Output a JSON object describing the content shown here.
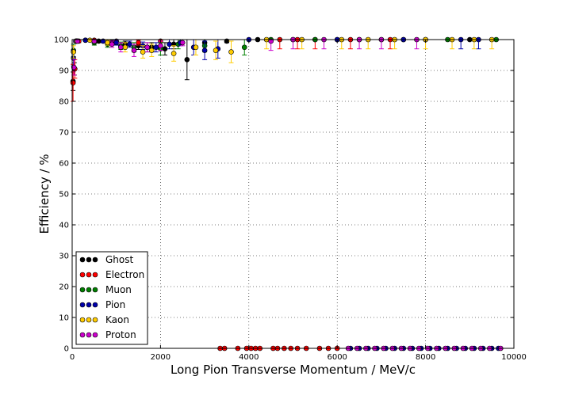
{
  "chart_data": {
    "type": "scatter",
    "title": "",
    "xlabel": "Long Pion Transverse Momentum / MeV/c",
    "ylabel": "Efficiency / %",
    "xlim": [
      0,
      10000
    ],
    "ylim": [
      0,
      100
    ],
    "x_ticks": [
      0,
      2000,
      4000,
      6000,
      8000,
      10000
    ],
    "y_ticks": [
      0,
      10,
      20,
      30,
      40,
      50,
      60,
      70,
      80,
      90,
      100
    ],
    "grid": true,
    "legend_position": "lower-left",
    "series": [
      {
        "name": "Ghost",
        "color": "#000000",
        "points": [
          {
            "x": 20,
            "y": 86.5,
            "err": 3.0
          },
          {
            "x": 50,
            "y": 90.5,
            "err": 2.0
          },
          {
            "x": 100,
            "y": 99.5,
            "err": 0.5
          },
          {
            "x": 300,
            "y": 99.8,
            "err": 0.3
          },
          {
            "x": 600,
            "y": 99.5,
            "err": 0.5
          },
          {
            "x": 900,
            "y": 99.0,
            "err": 0.8
          },
          {
            "x": 1200,
            "y": 98.5,
            "err": 1.0
          },
          {
            "x": 1500,
            "y": 98.0,
            "err": 1.2
          },
          {
            "x": 1800,
            "y": 97.5,
            "err": 1.5
          },
          {
            "x": 2100,
            "y": 97.0,
            "err": 2.0
          },
          {
            "x": 2300,
            "y": 98.5,
            "err": 1.5
          },
          {
            "x": 2600,
            "y": 93.5,
            "err": 6.5
          },
          {
            "x": 3000,
            "y": 99.0,
            "err": 1.0
          },
          {
            "x": 3500,
            "y": 99.5,
            "err": 0.5
          },
          {
            "x": 4200,
            "y": 100,
            "err": 0
          },
          {
            "x": 5000,
            "y": 100,
            "err": 0
          },
          {
            "x": 6000,
            "y": 100,
            "err": 0
          },
          {
            "x": 7000,
            "y": 100,
            "err": 0
          },
          {
            "x": 8000,
            "y": 100,
            "err": 0
          },
          {
            "x": 9000,
            "y": 100,
            "err": 0
          }
        ]
      },
      {
        "name": "Electron",
        "color": "#ff0000",
        "points": [
          {
            "x": 20,
            "y": 86.0,
            "err": 6.0
          },
          {
            "x": 60,
            "y": 90.5,
            "err": 3.0
          },
          {
            "x": 150,
            "y": 99.5,
            "err": 0.5
          },
          {
            "x": 500,
            "y": 99.8,
            "err": 0.3
          },
          {
            "x": 1000,
            "y": 99.5,
            "err": 0.5
          },
          {
            "x": 1500,
            "y": 99.0,
            "err": 0.8
          },
          {
            "x": 2000,
            "y": 99.5,
            "err": 0.5
          },
          {
            "x": 3350,
            "y": 0,
            "err": 0
          },
          {
            "x": 3450,
            "y": 0,
            "err": 0
          },
          {
            "x": 3750,
            "y": 0,
            "err": 0
          },
          {
            "x": 3950,
            "y": 0,
            "err": 0
          },
          {
            "x": 4050,
            "y": 0,
            "err": 0
          },
          {
            "x": 4150,
            "y": 0,
            "err": 0
          },
          {
            "x": 4250,
            "y": 0,
            "err": 0
          },
          {
            "x": 4550,
            "y": 0,
            "err": 0
          },
          {
            "x": 4650,
            "y": 0,
            "err": 0
          },
          {
            "x": 4800,
            "y": 0,
            "err": 0
          },
          {
            "x": 4950,
            "y": 0,
            "err": 0
          },
          {
            "x": 5100,
            "y": 0,
            "err": 0
          },
          {
            "x": 5300,
            "y": 0,
            "err": 0
          },
          {
            "x": 5600,
            "y": 0,
            "err": 0
          },
          {
            "x": 5800,
            "y": 0,
            "err": 0
          },
          {
            "x": 6000,
            "y": 0,
            "err": 0
          },
          {
            "x": 4700,
            "y": 100,
            "err": 3.0
          },
          {
            "x": 5100,
            "y": 100,
            "err": 3.0
          },
          {
            "x": 5500,
            "y": 100,
            "err": 3.0
          },
          {
            "x": 6300,
            "y": 100,
            "err": 3.0
          },
          {
            "x": 7200,
            "y": 100,
            "err": 3.0
          }
        ]
      },
      {
        "name": "Muon",
        "color": "#008000",
        "points": [
          {
            "x": 30,
            "y": 96.5,
            "err": 2.0
          },
          {
            "x": 100,
            "y": 99.5,
            "err": 0.5
          },
          {
            "x": 500,
            "y": 99.0,
            "err": 0.8
          },
          {
            "x": 800,
            "y": 98.5,
            "err": 1.0
          },
          {
            "x": 1100,
            "y": 98.0,
            "err": 1.2
          },
          {
            "x": 1400,
            "y": 97.5,
            "err": 1.5
          },
          {
            "x": 1700,
            "y": 97.5,
            "err": 1.5
          },
          {
            "x": 2000,
            "y": 97.0,
            "err": 2.0
          },
          {
            "x": 2400,
            "y": 98.5,
            "err": 1.5
          },
          {
            "x": 3000,
            "y": 98.0,
            "err": 2.0
          },
          {
            "x": 3900,
            "y": 97.5,
            "err": 2.5
          },
          {
            "x": 4500,
            "y": 100,
            "err": 0
          },
          {
            "x": 5500,
            "y": 100,
            "err": 0
          },
          {
            "x": 6500,
            "y": 100,
            "err": 0
          },
          {
            "x": 7500,
            "y": 100,
            "err": 0
          },
          {
            "x": 8500,
            "y": 100,
            "err": 0
          },
          {
            "x": 9600,
            "y": 100,
            "err": 0
          }
        ]
      },
      {
        "name": "Pion",
        "color": "#0000aa",
        "points": [
          {
            "x": 30,
            "y": 94.0,
            "err": 2.5
          },
          {
            "x": 80,
            "y": 99.5,
            "err": 0.5
          },
          {
            "x": 300,
            "y": 99.8,
            "err": 0.3
          },
          {
            "x": 700,
            "y": 99.5,
            "err": 0.5
          },
          {
            "x": 1000,
            "y": 99.0,
            "err": 0.8
          },
          {
            "x": 1300,
            "y": 98.5,
            "err": 1.0
          },
          {
            "x": 1600,
            "y": 98.0,
            "err": 1.2
          },
          {
            "x": 1900,
            "y": 97.5,
            "err": 1.5
          },
          {
            "x": 2200,
            "y": 98.5,
            "err": 1.5
          },
          {
            "x": 2450,
            "y": 99.0,
            "err": 1.0
          },
          {
            "x": 2750,
            "y": 97.5,
            "err": 2.5
          },
          {
            "x": 3000,
            "y": 96.5,
            "err": 3.0
          },
          {
            "x": 3300,
            "y": 97.0,
            "err": 3.0
          },
          {
            "x": 4000,
            "y": 100,
            "err": 0
          },
          {
            "x": 6300,
            "y": 0,
            "err": 0
          },
          {
            "x": 6500,
            "y": 0,
            "err": 0
          },
          {
            "x": 6700,
            "y": 0,
            "err": 0
          },
          {
            "x": 6900,
            "y": 0,
            "err": 0
          },
          {
            "x": 7100,
            "y": 0,
            "err": 0
          },
          {
            "x": 7300,
            "y": 0,
            "err": 0
          },
          {
            "x": 7500,
            "y": 0,
            "err": 0
          },
          {
            "x": 7700,
            "y": 0,
            "err": 0
          },
          {
            "x": 7900,
            "y": 0,
            "err": 0
          },
          {
            "x": 8100,
            "y": 0,
            "err": 0
          },
          {
            "x": 8300,
            "y": 0,
            "err": 0
          },
          {
            "x": 8500,
            "y": 0,
            "err": 0
          },
          {
            "x": 8700,
            "y": 0,
            "err": 0
          },
          {
            "x": 8900,
            "y": 0,
            "err": 0
          },
          {
            "x": 9100,
            "y": 0,
            "err": 0
          },
          {
            "x": 9300,
            "y": 0,
            "err": 0
          },
          {
            "x": 9500,
            "y": 0,
            "err": 0
          },
          {
            "x": 9650,
            "y": 0,
            "err": 0
          },
          {
            "x": 6000,
            "y": 100,
            "err": 0
          },
          {
            "x": 7500,
            "y": 100,
            "err": 0
          },
          {
            "x": 8800,
            "y": 100,
            "err": 3.0
          },
          {
            "x": 9200,
            "y": 100,
            "err": 3.0
          }
        ]
      },
      {
        "name": "Kaon",
        "color": "#ffcc00",
        "points": [
          {
            "x": 30,
            "y": 96.0,
            "err": 2.0
          },
          {
            "x": 100,
            "y": 99.5,
            "err": 0.5
          },
          {
            "x": 400,
            "y": 99.8,
            "err": 0.3
          },
          {
            "x": 800,
            "y": 99.0,
            "err": 0.8
          },
          {
            "x": 1200,
            "y": 97.5,
            "err": 1.5
          },
          {
            "x": 1600,
            "y": 96.0,
            "err": 2.0
          },
          {
            "x": 1800,
            "y": 96.5,
            "err": 2.0
          },
          {
            "x": 2300,
            "y": 95.5,
            "err": 2.5
          },
          {
            "x": 2800,
            "y": 97.5,
            "err": 2.5
          },
          {
            "x": 3250,
            "y": 96.5,
            "err": 3.0
          },
          {
            "x": 3600,
            "y": 96.0,
            "err": 3.5
          },
          {
            "x": 4400,
            "y": 100,
            "err": 3.0
          },
          {
            "x": 5200,
            "y": 100,
            "err": 3.0
          },
          {
            "x": 6100,
            "y": 100,
            "err": 3.0
          },
          {
            "x": 6700,
            "y": 100,
            "err": 3.0
          },
          {
            "x": 7300,
            "y": 100,
            "err": 3.0
          },
          {
            "x": 8000,
            "y": 100,
            "err": 3.0
          },
          {
            "x": 8600,
            "y": 100,
            "err": 3.0
          },
          {
            "x": 9100,
            "y": 100,
            "err": 3.0
          },
          {
            "x": 9500,
            "y": 100,
            "err": 3.0
          }
        ]
      },
      {
        "name": "Proton",
        "color": "#cc00cc",
        "points": [
          {
            "x": 40,
            "y": 91.0,
            "err": 2.5
          },
          {
            "x": 120,
            "y": 99.5,
            "err": 0.5
          },
          {
            "x": 500,
            "y": 99.5,
            "err": 0.5
          },
          {
            "x": 900,
            "y": 98.5,
            "err": 1.0
          },
          {
            "x": 1100,
            "y": 97.5,
            "err": 1.5
          },
          {
            "x": 1400,
            "y": 96.5,
            "err": 2.0
          },
          {
            "x": 1700,
            "y": 97.5,
            "err": 1.5
          },
          {
            "x": 2000,
            "y": 98.0,
            "err": 1.5
          },
          {
            "x": 2500,
            "y": 99.0,
            "err": 1.0
          },
          {
            "x": 4500,
            "y": 99.5,
            "err": 3.0
          },
          {
            "x": 5000,
            "y": 100,
            "err": 3.0
          },
          {
            "x": 5700,
            "y": 100,
            "err": 3.0
          },
          {
            "x": 6500,
            "y": 100,
            "err": 3.0
          },
          {
            "x": 7000,
            "y": 100,
            "err": 3.0
          },
          {
            "x": 7800,
            "y": 100,
            "err": 3.0
          },
          {
            "x": 6250,
            "y": 0,
            "err": 0
          },
          {
            "x": 6450,
            "y": 0,
            "err": 0
          },
          {
            "x": 6650,
            "y": 0,
            "err": 0
          },
          {
            "x": 6850,
            "y": 0,
            "err": 0
          },
          {
            "x": 7050,
            "y": 0,
            "err": 0
          },
          {
            "x": 7250,
            "y": 0,
            "err": 0
          },
          {
            "x": 7450,
            "y": 0,
            "err": 0
          },
          {
            "x": 7650,
            "y": 0,
            "err": 0
          },
          {
            "x": 7850,
            "y": 0,
            "err": 0
          },
          {
            "x": 8050,
            "y": 0,
            "err": 0
          },
          {
            "x": 8250,
            "y": 0,
            "err": 0
          },
          {
            "x": 8450,
            "y": 0,
            "err": 0
          },
          {
            "x": 8650,
            "y": 0,
            "err": 0
          },
          {
            "x": 8850,
            "y": 0,
            "err": 0
          },
          {
            "x": 9050,
            "y": 0,
            "err": 0
          },
          {
            "x": 9250,
            "y": 0,
            "err": 0
          },
          {
            "x": 9450,
            "y": 0,
            "err": 0
          },
          {
            "x": 9700,
            "y": 0,
            "err": 0
          }
        ]
      }
    ]
  }
}
